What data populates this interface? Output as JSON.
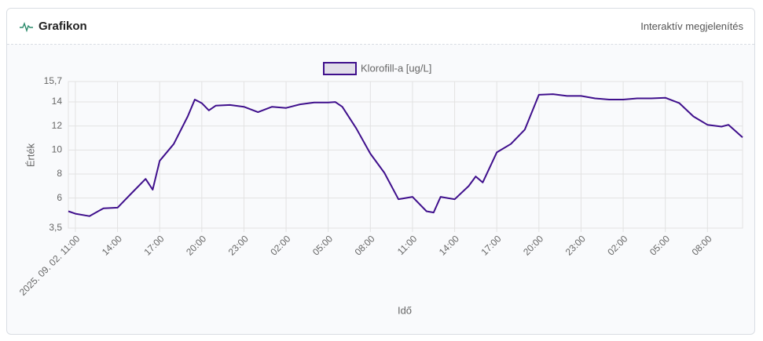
{
  "header": {
    "title": "Grafikon",
    "subtitle": "Interaktív megjelenítés"
  },
  "chart_data": {
    "type": "line",
    "xlabel": "Idő",
    "ylabel": "Érték",
    "x": [
      "2025-09-02T10:30",
      "2025-09-02T11:00",
      "2025-09-02T12:00",
      "2025-09-02T13:00",
      "2025-09-02T14:00",
      "2025-09-02T15:00",
      "2025-09-02T16:00",
      "2025-09-02T16:30",
      "2025-09-02T17:00",
      "2025-09-02T18:00",
      "2025-09-02T19:00",
      "2025-09-02T19:30",
      "2025-09-02T20:00",
      "2025-09-02T20:30",
      "2025-09-02T21:00",
      "2025-09-02T22:00",
      "2025-09-02T23:00",
      "2025-09-03T00:00",
      "2025-09-03T01:00",
      "2025-09-03T02:00",
      "2025-09-03T03:00",
      "2025-09-03T04:00",
      "2025-09-03T05:00",
      "2025-09-03T05:30",
      "2025-09-03T06:00",
      "2025-09-03T07:00",
      "2025-09-03T08:00",
      "2025-09-03T09:00",
      "2025-09-03T10:00",
      "2025-09-03T11:00",
      "2025-09-03T12:00",
      "2025-09-03T12:30",
      "2025-09-03T13:00",
      "2025-09-03T14:00",
      "2025-09-03T15:00",
      "2025-09-03T15:30",
      "2025-09-03T16:00",
      "2025-09-03T17:00",
      "2025-09-03T18:00",
      "2025-09-03T19:00",
      "2025-09-03T20:00",
      "2025-09-03T21:00",
      "2025-09-03T22:00",
      "2025-09-03T23:00",
      "2025-09-04T00:00",
      "2025-09-04T01:00",
      "2025-09-04T02:00",
      "2025-09-04T03:00",
      "2025-09-04T04:00",
      "2025-09-04T05:00",
      "2025-09-04T06:00",
      "2025-09-04T07:00",
      "2025-09-04T08:00",
      "2025-09-04T09:00",
      "2025-09-04T09:30",
      "2025-09-04T10:30"
    ],
    "series": [
      {
        "name": "Klorofill-a [ug/L]",
        "color": "#3f0f8c",
        "values": [
          4.9,
          4.7,
          4.5,
          5.15,
          5.2,
          6.4,
          7.6,
          6.7,
          9.1,
          10.5,
          12.8,
          14.2,
          13.9,
          13.3,
          13.7,
          13.75,
          13.6,
          13.15,
          13.6,
          13.5,
          13.8,
          13.95,
          13.95,
          14.0,
          13.6,
          11.8,
          9.7,
          8.1,
          5.9,
          6.1,
          4.9,
          4.8,
          6.1,
          5.9,
          7.0,
          7.8,
          7.3,
          9.8,
          10.5,
          11.7,
          14.6,
          14.65,
          14.5,
          14.5,
          14.3,
          14.2,
          14.2,
          14.3,
          14.3,
          14.35,
          13.9,
          12.8,
          12.1,
          11.95,
          12.1,
          11.05
        ]
      }
    ],
    "xlim": [
      "2025-09-02T10:30",
      "2025-09-04T10:30"
    ],
    "xticks": [
      {
        "value": "2025-09-02T11:00",
        "label": "2025. 09. 02. 11:00"
      },
      {
        "value": "2025-09-02T14:00",
        "label": "14:00"
      },
      {
        "value": "2025-09-02T17:00",
        "label": "17:00"
      },
      {
        "value": "2025-09-02T20:00",
        "label": "20:00"
      },
      {
        "value": "2025-09-02T23:00",
        "label": "23:00"
      },
      {
        "value": "2025-09-03T02:00",
        "label": "02:00"
      },
      {
        "value": "2025-09-03T05:00",
        "label": "05:00"
      },
      {
        "value": "2025-09-03T08:00",
        "label": "08:00"
      },
      {
        "value": "2025-09-03T11:00",
        "label": "11:00"
      },
      {
        "value": "2025-09-03T14:00",
        "label": "14:00"
      },
      {
        "value": "2025-09-03T17:00",
        "label": "17:00"
      },
      {
        "value": "2025-09-03T20:00",
        "label": "20:00"
      },
      {
        "value": "2025-09-03T23:00",
        "label": "23:00"
      },
      {
        "value": "2025-09-04T02:00",
        "label": "02:00"
      },
      {
        "value": "2025-09-04T05:00",
        "label": "05:00"
      },
      {
        "value": "2025-09-04T08:00",
        "label": "08:00"
      }
    ],
    "ylim": [
      3.5,
      15.7
    ],
    "yticks": [
      {
        "value": 3.5,
        "label": "3,5"
      },
      6,
      8,
      10,
      12,
      14,
      {
        "value": 15.7,
        "label": "15,7"
      }
    ],
    "grid": true,
    "legend": "top"
  }
}
